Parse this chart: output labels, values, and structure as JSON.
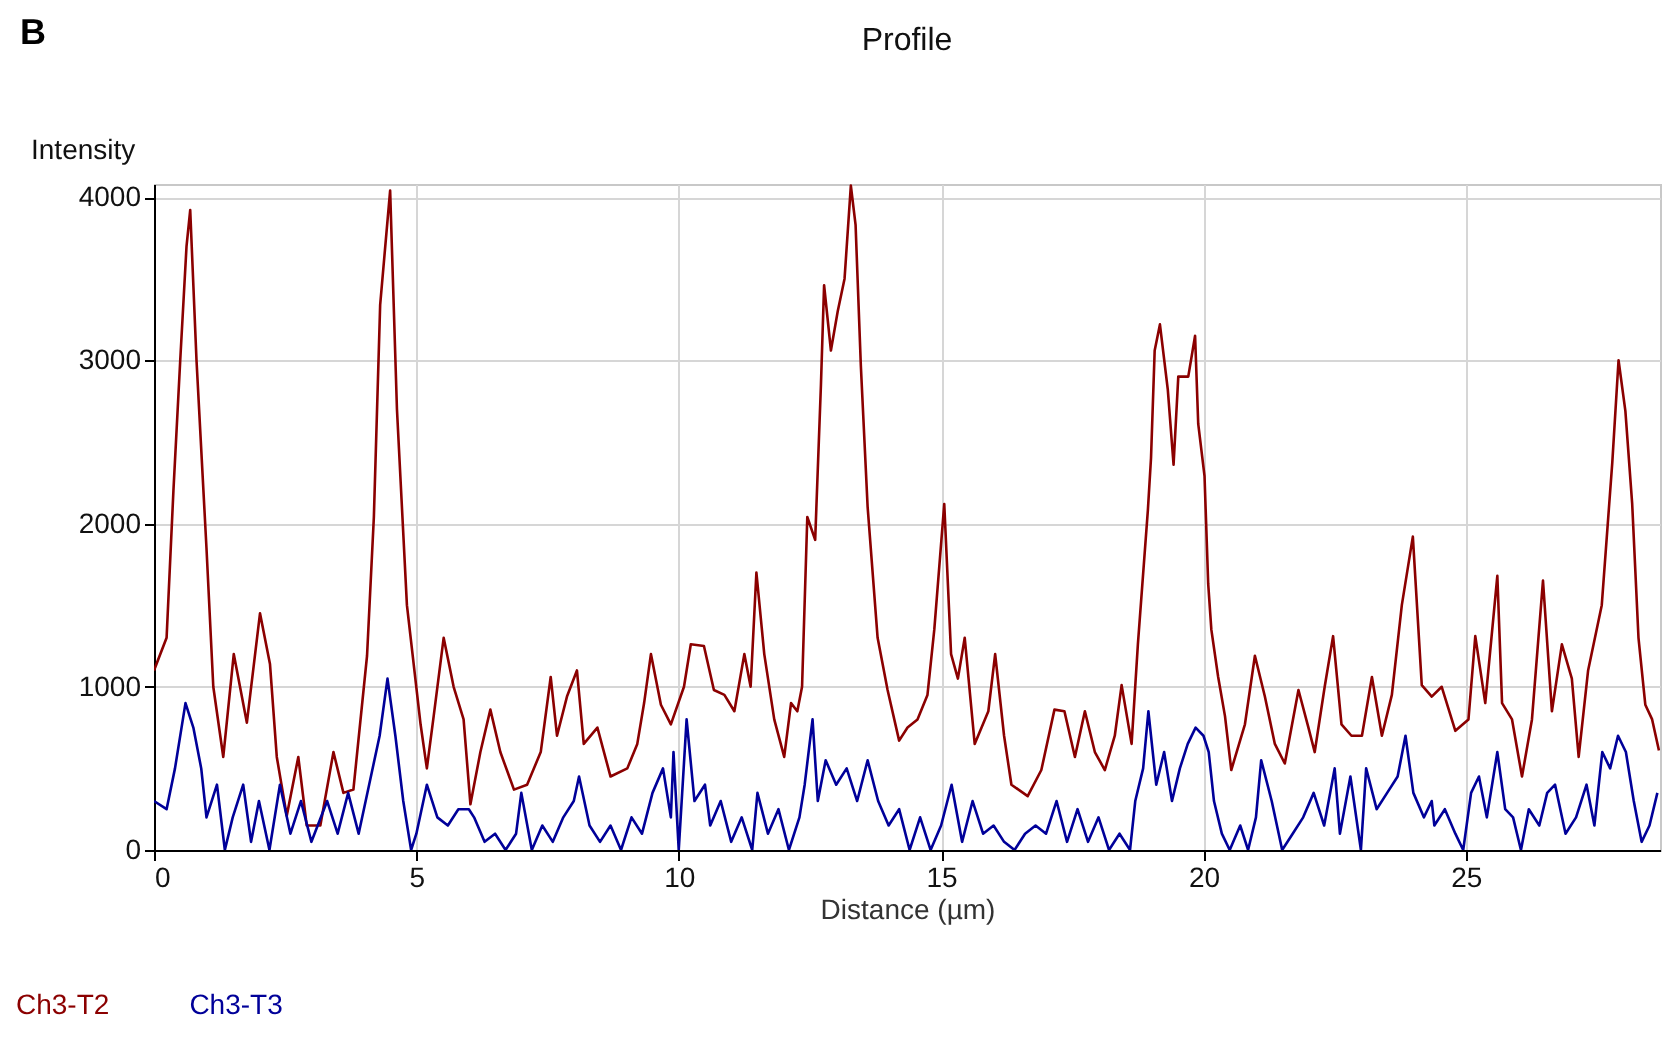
{
  "chart_data": {
    "type": "line",
    "title": "Profile",
    "xlabel": "Distance (µm)",
    "ylabel": "Intensity",
    "annotations": [
      "B"
    ],
    "xlim": [
      0,
      28.7
    ],
    "xticks": [
      0,
      5,
      10,
      15,
      20,
      25
    ],
    "ylim": [
      0,
      4080
    ],
    "yticks": [
      0,
      1000,
      2000,
      3000,
      4000
    ],
    "grid": true,
    "legend": "bottom left",
    "series": [
      {
        "name": "Ch3-T2",
        "color": "#8b0000",
        "x": [
          0,
          0.24,
          0.37,
          0.5,
          0.62,
          0.69,
          0.81,
          1.0,
          1.13,
          1.32,
          1.52,
          1.77,
          2.02,
          2.21,
          2.34,
          2.53,
          2.75,
          2.91,
          3.17,
          3.42,
          3.61,
          3.8,
          4.06,
          4.19,
          4.31,
          4.5,
          4.63,
          4.82,
          5.08,
          5.2,
          5.33,
          5.52,
          5.71,
          5.9,
          6.03,
          6.22,
          6.41,
          6.6,
          6.86,
          7.11,
          7.37,
          7.56,
          7.68,
          7.87,
          8.06,
          8.19,
          8.45,
          8.7,
          9.02,
          9.21,
          9.34,
          9.47,
          9.66,
          9.85,
          10.1,
          10.23,
          10.48,
          10.67,
          10.87,
          11.06,
          11.25,
          11.37,
          11.48,
          11.63,
          11.82,
          12.01,
          12.14,
          12.26,
          12.35,
          12.45,
          12.6,
          12.71,
          12.77,
          12.9,
          13.03,
          13.16,
          13.28,
          13.37,
          13.47,
          13.6,
          13.79,
          13.98,
          14.2,
          14.36,
          14.55,
          14.74,
          14.87,
          15.06,
          15.19,
          15.32,
          15.45,
          15.64,
          15.9,
          16.03,
          16.2,
          16.34,
          16.65,
          16.91,
          17.16,
          17.35,
          17.55,
          17.74,
          17.93,
          18.12,
          18.31,
          18.44,
          18.63,
          18.75,
          18.94,
          19.0,
          19.07,
          19.17,
          19.32,
          19.43,
          19.52,
          19.71,
          19.84,
          19.9,
          20.02,
          20.09,
          20.15,
          20.28,
          20.41,
          20.53,
          20.79,
          20.98,
          21.17,
          21.36,
          21.55,
          21.81,
          22.0,
          22.12,
          22.31,
          22.47,
          22.63,
          22.82,
          23.02,
          23.21,
          23.4,
          23.59,
          23.78,
          23.99,
          24.16,
          24.35,
          24.54,
          24.8,
          25.05,
          25.18,
          25.37,
          25.6,
          25.69,
          25.88,
          26.07,
          26.26,
          26.47,
          26.64,
          26.83,
          27.02,
          27.15,
          27.33,
          27.59,
          27.79,
          27.91,
          28.04,
          28.17,
          28.29,
          28.42,
          28.55,
          28.68
        ],
        "values": [
          1100,
          1300,
          2200,
          3000,
          3700,
          3920,
          3000,
          1850,
          1000,
          570,
          1200,
          780,
          1450,
          1140,
          570,
          210,
          570,
          150,
          150,
          600,
          350,
          370,
          1190,
          2040,
          3340,
          4040,
          2700,
          1500,
          770,
          500,
          820,
          1300,
          1000,
          800,
          280,
          600,
          860,
          600,
          370,
          400,
          600,
          1060,
          700,
          940,
          1100,
          650,
          750,
          450,
          500,
          650,
          900,
          1200,
          890,
          770,
          1000,
          1260,
          1250,
          980,
          950,
          850,
          1200,
          1000,
          1700,
          1200,
          800,
          570,
          900,
          850,
          1000,
          2040,
          1900,
          2850,
          3460,
          3060,
          3300,
          3500,
          4070,
          3830,
          2970,
          2100,
          1300,
          980,
          670,
          750,
          800,
          950,
          1350,
          2120,
          1200,
          1050,
          1300,
          650,
          850,
          1200,
          700,
          400,
          330,
          490,
          860,
          850,
          570,
          850,
          600,
          490,
          700,
          1010,
          650,
          1260,
          2080,
          2400,
          3060,
          3220,
          2820,
          2360,
          2900,
          2900,
          3150,
          2610,
          2290,
          1630,
          1350,
          1060,
          820,
          490,
          770,
          1190,
          940,
          650,
          530,
          980,
          750,
          600,
          1000,
          1310,
          770,
          700,
          700,
          1060,
          700,
          950,
          1500,
          1920,
          1010,
          940,
          1000,
          730,
          800,
          1310,
          900,
          1680,
          900,
          800,
          450,
          800,
          1650,
          850,
          1260,
          1050,
          570,
          1100,
          1500,
          2370,
          3000,
          2690,
          2120,
          1300,
          890,
          800,
          610
        ]
      },
      {
        "name": "Ch3-T3",
        "color": "#000099",
        "x": [
          0,
          0.24,
          0.4,
          0.6,
          0.75,
          0.9,
          1.0,
          1.2,
          1.35,
          1.5,
          1.7,
          1.85,
          2.0,
          2.2,
          2.4,
          2.6,
          2.8,
          3.0,
          3.3,
          3.5,
          3.7,
          3.9,
          4.1,
          4.3,
          4.45,
          4.6,
          4.75,
          4.9,
          5.0,
          5.2,
          5.4,
          5.6,
          5.8,
          6.0,
          6.1,
          6.3,
          6.5,
          6.7,
          6.9,
          7.0,
          7.2,
          7.4,
          7.6,
          7.8,
          8.0,
          8.1,
          8.3,
          8.5,
          8.7,
          8.9,
          9.1,
          9.3,
          9.5,
          9.7,
          9.85,
          9.9,
          10.0,
          10.15,
          10.3,
          10.5,
          10.6,
          10.8,
          11.0,
          11.2,
          11.4,
          11.5,
          11.7,
          11.9,
          12.1,
          12.3,
          12.4,
          12.55,
          12.65,
          12.8,
          13.0,
          13.2,
          13.4,
          13.6,
          13.8,
          14.0,
          14.2,
          14.4,
          14.6,
          14.8,
          15.0,
          15.2,
          15.4,
          15.6,
          15.8,
          16.0,
          16.2,
          16.4,
          16.6,
          16.8,
          17.0,
          17.2,
          17.4,
          17.6,
          17.8,
          18.0,
          18.2,
          18.4,
          18.6,
          18.7,
          18.85,
          18.95,
          19.1,
          19.25,
          19.4,
          19.55,
          19.7,
          19.85,
          20.0,
          20.1,
          20.2,
          20.35,
          20.5,
          20.7,
          20.85,
          21.0,
          21.1,
          21.3,
          21.5,
          21.7,
          21.9,
          22.1,
          22.3,
          22.5,
          22.6,
          22.8,
          23.0,
          23.1,
          23.3,
          23.5,
          23.7,
          23.85,
          24.0,
          24.2,
          24.35,
          24.4,
          24.6,
          24.8,
          24.95,
          25.1,
          25.25,
          25.4,
          25.6,
          25.75,
          25.9,
          26.05,
          26.2,
          26.4,
          26.55,
          26.7,
          26.9,
          27.1,
          27.3,
          27.45,
          27.6,
          27.75,
          27.9,
          28.05,
          28.2,
          28.35,
          28.5,
          28.65
        ],
        "values": [
          300,
          250,
          500,
          900,
          750,
          500,
          200,
          400,
          0,
          200,
          400,
          50,
          300,
          0,
          400,
          100,
          300,
          50,
          300,
          100,
          350,
          100,
          400,
          700,
          1050,
          700,
          300,
          0,
          100,
          400,
          200,
          150,
          250,
          250,
          200,
          50,
          100,
          0,
          100,
          350,
          0,
          150,
          50,
          200,
          300,
          450,
          150,
          50,
          150,
          0,
          200,
          100,
          350,
          500,
          200,
          600,
          0,
          800,
          300,
          400,
          150,
          300,
          50,
          200,
          0,
          350,
          100,
          250,
          0,
          200,
          400,
          800,
          300,
          550,
          400,
          500,
          300,
          550,
          300,
          150,
          250,
          0,
          200,
          0,
          150,
          400,
          50,
          300,
          100,
          150,
          50,
          0,
          100,
          150,
          100,
          300,
          50,
          250,
          50,
          200,
          0,
          100,
          0,
          300,
          500,
          850,
          400,
          600,
          300,
          500,
          650,
          750,
          700,
          600,
          300,
          100,
          0,
          150,
          0,
          200,
          550,
          300,
          0,
          100,
          200,
          350,
          150,
          500,
          100,
          450,
          0,
          500,
          250,
          350,
          450,
          700,
          350,
          200,
          300,
          150,
          250,
          100,
          0,
          350,
          450,
          200,
          600,
          250,
          200,
          0,
          250,
          150,
          350,
          400,
          100,
          200,
          400,
          150,
          600,
          500,
          700,
          600,
          300,
          50,
          150,
          350
        ]
      }
    ]
  }
}
